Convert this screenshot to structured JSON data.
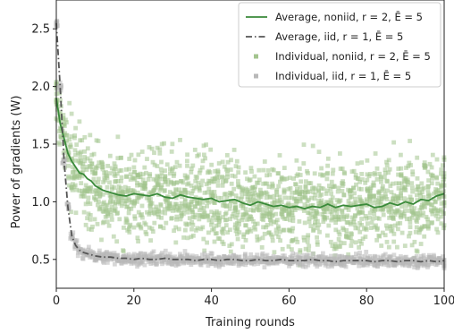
{
  "chart_data": {
    "type": "line",
    "xlabel": "Training rounds",
    "ylabel": "Power of gradients (W)",
    "xlim": [
      0,
      100
    ],
    "ylim": [
      0.25,
      2.75
    ],
    "xticks": [
      0,
      20,
      40,
      60,
      80,
      100
    ],
    "yticks": [
      0.5,
      1.0,
      1.5,
      2.0,
      2.5
    ],
    "xtick_labels": [
      "0",
      "20",
      "40",
      "60",
      "80",
      "100"
    ],
    "ytick_labels": [
      "0.5",
      "1.0",
      "1.5",
      "2.0",
      "2.5"
    ],
    "legend_position": "top-right",
    "grid": false,
    "series": [
      {
        "name": "Average, noniid, r = 2, Ē = 5",
        "style": "solid",
        "color": "#3a8a3a",
        "x": [
          0,
          1,
          2,
          3,
          4,
          5,
          6,
          7,
          8,
          9,
          10,
          12,
          14,
          16,
          18,
          20,
          22,
          24,
          26,
          28,
          30,
          32,
          34,
          36,
          38,
          40,
          42,
          44,
          46,
          48,
          50,
          52,
          54,
          56,
          58,
          60,
          62,
          64,
          66,
          68,
          70,
          72,
          74,
          76,
          78,
          80,
          82,
          84,
          86,
          88,
          90,
          92,
          94,
          96,
          98,
          100
        ],
        "values": [
          1.9,
          1.68,
          1.55,
          1.42,
          1.35,
          1.3,
          1.25,
          1.24,
          1.2,
          1.18,
          1.14,
          1.1,
          1.08,
          1.06,
          1.05,
          1.07,
          1.06,
          1.05,
          1.07,
          1.04,
          1.03,
          1.06,
          1.04,
          1.03,
          1.02,
          1.03,
          1.0,
          1.01,
          1.02,
          0.99,
          0.97,
          1.0,
          0.98,
          0.96,
          0.97,
          0.95,
          0.96,
          0.94,
          0.96,
          0.95,
          0.98,
          0.95,
          0.97,
          0.96,
          0.97,
          0.98,
          0.95,
          0.96,
          0.99,
          0.97,
          1.0,
          0.98,
          1.02,
          1.01,
          1.05,
          1.07
        ]
      },
      {
        "name": "Average, iid, r = 1, Ē = 5",
        "style": "dashdot",
        "color": "#555555",
        "x": [
          0,
          1,
          2,
          3,
          4,
          5,
          6,
          7,
          8,
          9,
          10,
          12,
          14,
          16,
          18,
          20,
          22,
          24,
          26,
          28,
          30,
          32,
          34,
          36,
          38,
          40,
          42,
          44,
          46,
          48,
          50,
          52,
          54,
          56,
          58,
          60,
          62,
          64,
          66,
          68,
          70,
          72,
          74,
          76,
          78,
          80,
          82,
          84,
          86,
          88,
          90,
          92,
          94,
          96,
          98,
          100
        ],
        "values": [
          2.55,
          2.0,
          1.35,
          0.95,
          0.7,
          0.62,
          0.58,
          0.56,
          0.55,
          0.54,
          0.53,
          0.52,
          0.52,
          0.51,
          0.51,
          0.5,
          0.51,
          0.5,
          0.5,
          0.51,
          0.5,
          0.5,
          0.5,
          0.49,
          0.5,
          0.5,
          0.49,
          0.5,
          0.5,
          0.49,
          0.49,
          0.5,
          0.49,
          0.49,
          0.5,
          0.49,
          0.49,
          0.49,
          0.5,
          0.49,
          0.49,
          0.48,
          0.49,
          0.49,
          0.49,
          0.49,
          0.48,
          0.49,
          0.49,
          0.48,
          0.49,
          0.49,
          0.48,
          0.49,
          0.48,
          0.49
        ]
      }
    ],
    "scatter_series": [
      {
        "name": "Individual, noniid, r = 2, Ē = 5",
        "marker": "square",
        "color": "#a3c48e",
        "around": "Average, noniid, r = 2, Ē = 5",
        "spread": 0.45,
        "points_per_round": 18
      },
      {
        "name": "Individual, iid, r = 1, Ē = 5",
        "marker": "square",
        "color": "#b8b8b8",
        "around": "Average, iid, r = 1, Ē = 5",
        "spread": 0.06,
        "points_per_round": 10
      }
    ]
  }
}
